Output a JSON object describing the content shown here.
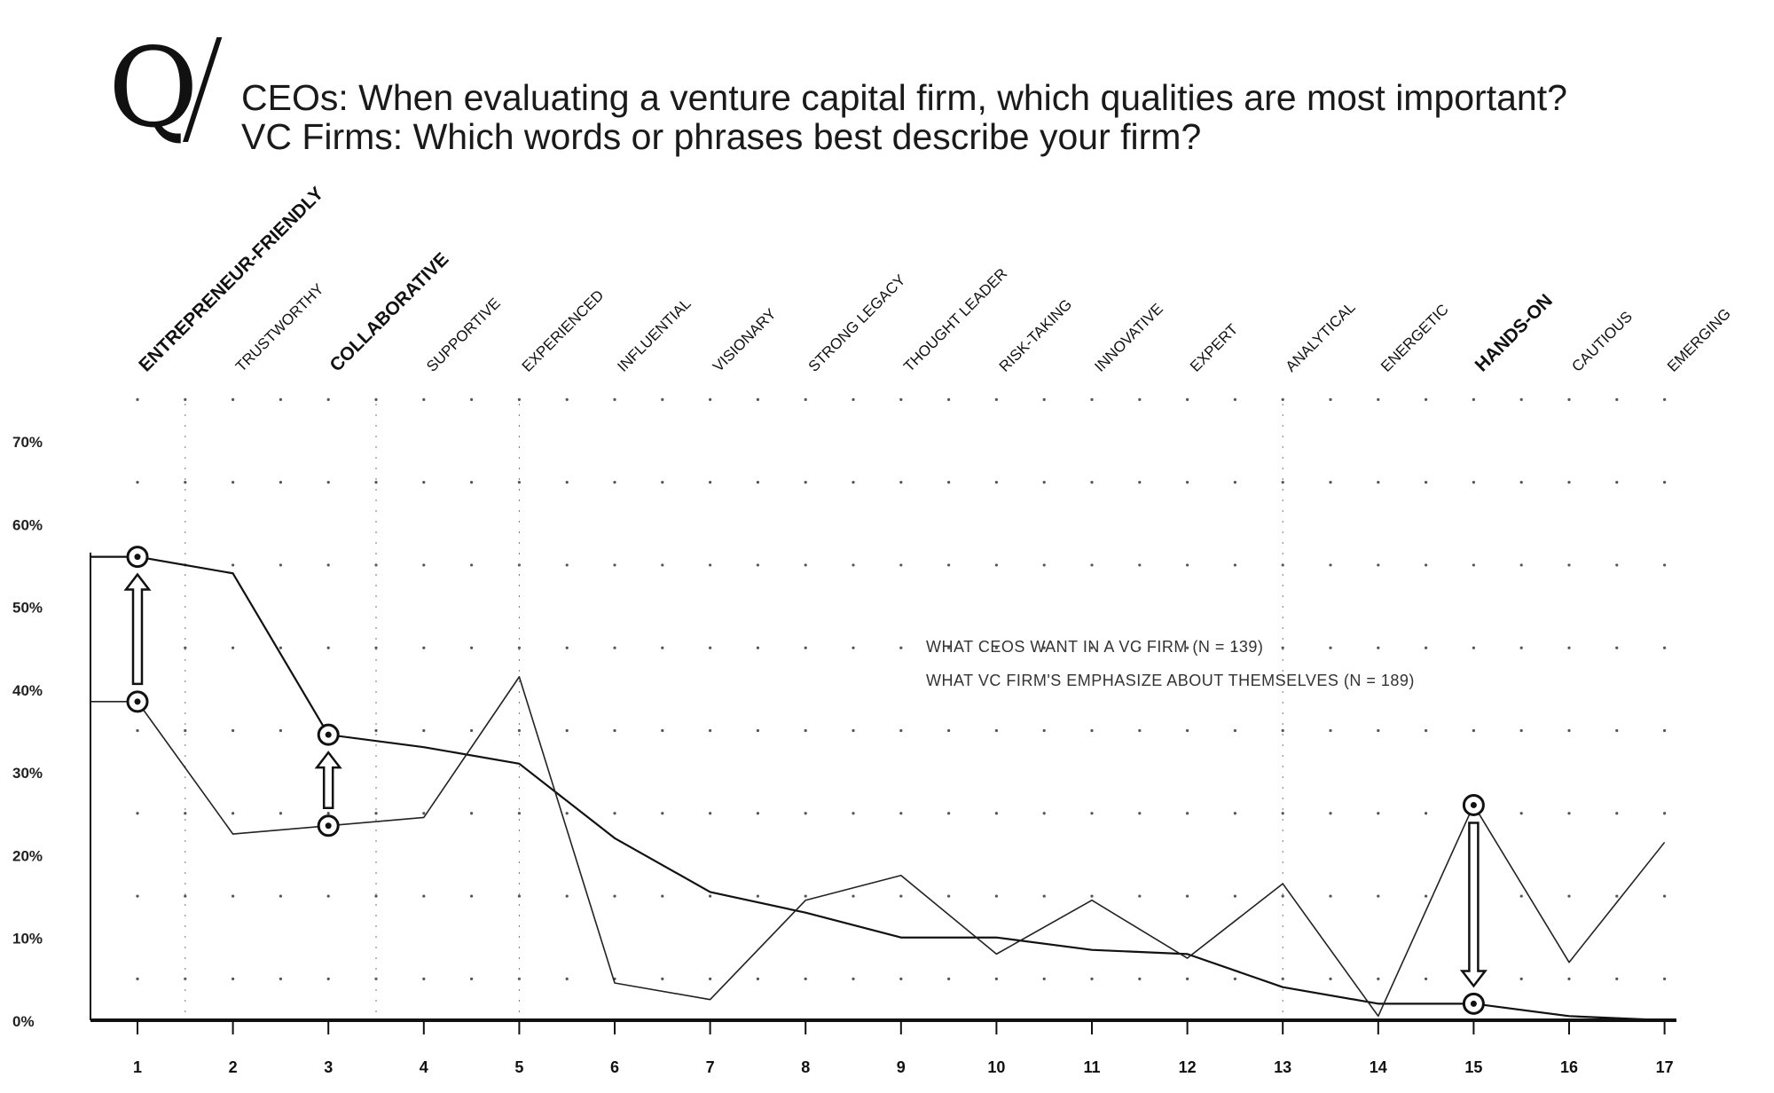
{
  "header": {
    "mark": "Q",
    "question_ceo": "CEOs: When evaluating a venture capital firm, which qualities are most important?",
    "question_vc": "VC Firms: Which words or phrases best describe your firm?"
  },
  "chart_data": {
    "type": "line",
    "title": "",
    "xlabel": "",
    "ylabel": "",
    "x": [
      1,
      2,
      3,
      4,
      5,
      6,
      7,
      8,
      9,
      10,
      11,
      12,
      13,
      14,
      15,
      16,
      17
    ],
    "categories": [
      "ENTREPRENEUR-FRIENDLY",
      "TRUSTWORTHY",
      "COLLABORATIVE",
      "SUPPORTIVE",
      "EXPERIENCED",
      "INFLUENTIAL",
      "VISIONARY",
      "STRONG LEGACY",
      "THOUGHT LEADER",
      "RISK-TAKING",
      "INNOVATIVE",
      "EXPERT",
      "ANALYTICAL",
      "ENERGETIC",
      "HANDS-ON",
      "CAUTIOUS",
      "EMERGING"
    ],
    "highlighted_categories": [
      "ENTREPRENEUR-FRIENDLY",
      "COLLABORATIVE",
      "HANDS-ON"
    ],
    "ylim": [
      0,
      70
    ],
    "yticks": [
      "0%",
      "10%",
      "20%",
      "30%",
      "40%",
      "50%",
      "60%",
      "70%"
    ],
    "series": [
      {
        "name": "WHAT CEOS WANT IN A VC FIRM (N = 139)",
        "values": [
          56,
          54,
          34.5,
          33,
          31,
          22,
          15.5,
          13,
          10,
          10,
          8.5,
          8,
          4,
          2,
          2,
          0.5,
          0
        ]
      },
      {
        "name": "WHAT VC FIRM'S EMPHASIZE ABOUT THEMSELVES (N = 189)",
        "values": [
          38.5,
          22.5,
          23.5,
          24.5,
          41.5,
          4.5,
          2.5,
          14.5,
          17.5,
          8,
          14.5,
          7.5,
          16.5,
          0.5,
          26,
          7,
          21.5
        ]
      }
    ],
    "markers": [
      {
        "x": 1,
        "from": 38.5,
        "to": 56
      },
      {
        "x": 3,
        "from": 23.5,
        "to": 34.5
      },
      {
        "x": 15,
        "from": 26,
        "to": 2
      }
    ],
    "grid": "dotted",
    "legend": "center-right"
  }
}
